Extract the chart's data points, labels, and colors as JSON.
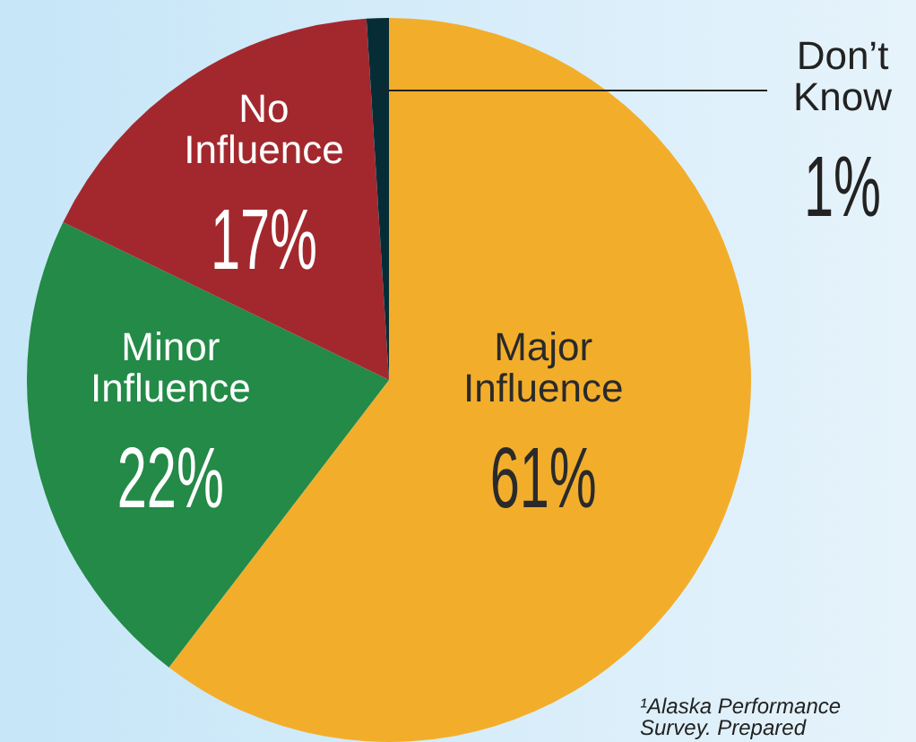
{
  "chart_data": {
    "type": "pie",
    "categories": [
      "Major Influence",
      "Minor Influence",
      "No Influence",
      "Don’t Know"
    ],
    "values": [
      61,
      22,
      17,
      1
    ],
    "colors": [
      "#f2ae2b",
      "#238a47",
      "#a3282e",
      "#062d35"
    ],
    "value_labels": [
      "61%",
      "22%",
      "17%",
      "1%"
    ],
    "legend": false,
    "annotations": [
      "¹Alaska Performance Survey. Prepared"
    ]
  }
}
